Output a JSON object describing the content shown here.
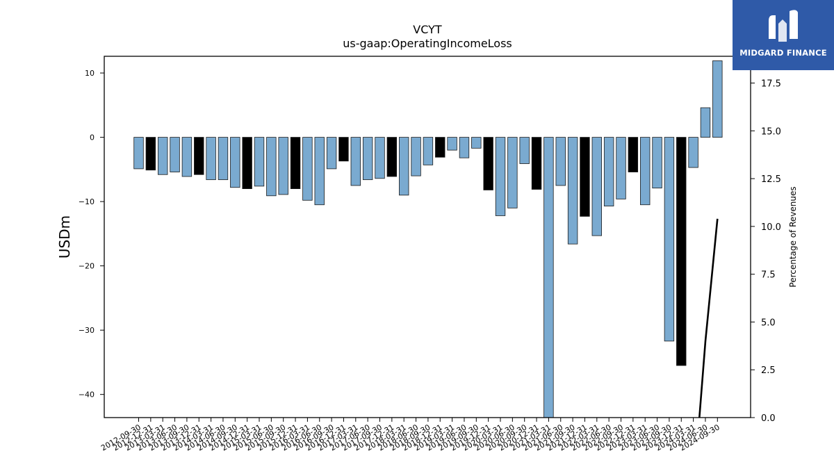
{
  "chart_data": {
    "type": "bar",
    "title": "VCYT",
    "subtitle": "us-gaap:OperatingIncomeLoss",
    "ylabel": "USDm",
    "y2label": "Percentage of Revenues",
    "ylim": [
      -43.6,
      12.6
    ],
    "y2lim": [
      0.0,
      18.9
    ],
    "yticks": [
      10,
      0,
      -10,
      -20,
      -30,
      -40
    ],
    "yticklabels": [
      "10",
      "0",
      "−10",
      "−20",
      "−30",
      "−40"
    ],
    "y2ticks": [
      0.0,
      2.5,
      5.0,
      7.5,
      10.0,
      12.5,
      15.0,
      17.5
    ],
    "y2ticklabels": [
      "0.0",
      "2.5",
      "5.0",
      "7.5",
      "10.0",
      "12.5",
      "15.0",
      "17.5"
    ],
    "categories": [
      "2012-09-30",
      "2012-12-31",
      "2013-03-31",
      "2013-06-30",
      "2013-09-30",
      "2013-12-31",
      "2014-03-31",
      "2014-06-30",
      "2014-09-30",
      "2014-12-31",
      "2015-03-31",
      "2015-06-30",
      "2015-09-30",
      "2015-12-31",
      "2016-03-31",
      "2016-06-30",
      "2016-09-30",
      "2016-12-31",
      "2017-03-31",
      "2017-06-30",
      "2017-09-30",
      "2017-12-31",
      "2018-03-31",
      "2018-06-30",
      "2018-09-30",
      "2018-12-31",
      "2019-03-31",
      "2019-06-30",
      "2019-09-30",
      "2019-12-31",
      "2020-03-31",
      "2020-06-30",
      "2020-09-30",
      "2020-12-31",
      "2021-03-31",
      "2021-06-30",
      "2021-09-30",
      "2021-12-31",
      "2022-03-31",
      "2022-06-30",
      "2022-09-30",
      "2022-12-31",
      "2023-03-31",
      "2023-06-30",
      "2023-09-30",
      "2023-12-31",
      "2024-03-31",
      "2024-06-30",
      "2024-09-30"
    ],
    "values": [
      -4.9,
      -5.1,
      -5.8,
      -5.4,
      -6.1,
      -5.8,
      -6.6,
      -6.6,
      -7.8,
      -8.0,
      -7.6,
      -9.1,
      -8.9,
      -8.0,
      -9.8,
      -10.5,
      -4.9,
      -3.7,
      -7.5,
      -6.6,
      -6.4,
      -6.1,
      -9.0,
      -6.0,
      -4.3,
      -3.1,
      -2.0,
      -3.2,
      -1.7,
      -8.2,
      -12.2,
      -11.0,
      -4.1,
      -8.1,
      -43.6,
      -7.5,
      -16.6,
      -12.3,
      -15.3,
      -10.7,
      -9.6,
      -5.4,
      -10.5,
      -7.9,
      -31.7,
      -35.5,
      -4.7,
      4.6,
      11.9
    ],
    "annual_flags": [
      0,
      1,
      0,
      0,
      0,
      1,
      0,
      0,
      0,
      1,
      0,
      0,
      0,
      1,
      0,
      0,
      0,
      1,
      0,
      0,
      0,
      1,
      0,
      0,
      0,
      1,
      0,
      0,
      0,
      1,
      0,
      0,
      0,
      1,
      0,
      0,
      0,
      1,
      0,
      0,
      0,
      1,
      0,
      0,
      0,
      1,
      0,
      0,
      0
    ],
    "colors": {
      "quarter": "#7aaad0",
      "annual": "#000000",
      "edge": "#1a1a1a",
      "line": "#000000"
    },
    "line_series": {
      "x_index": [
        46.5,
        47,
        48
      ],
      "values": [
        0.0,
        4.0,
        10.4
      ]
    },
    "grid": false,
    "legend": "none"
  },
  "logo": {
    "text": "MIDGARD FINANCE"
  }
}
